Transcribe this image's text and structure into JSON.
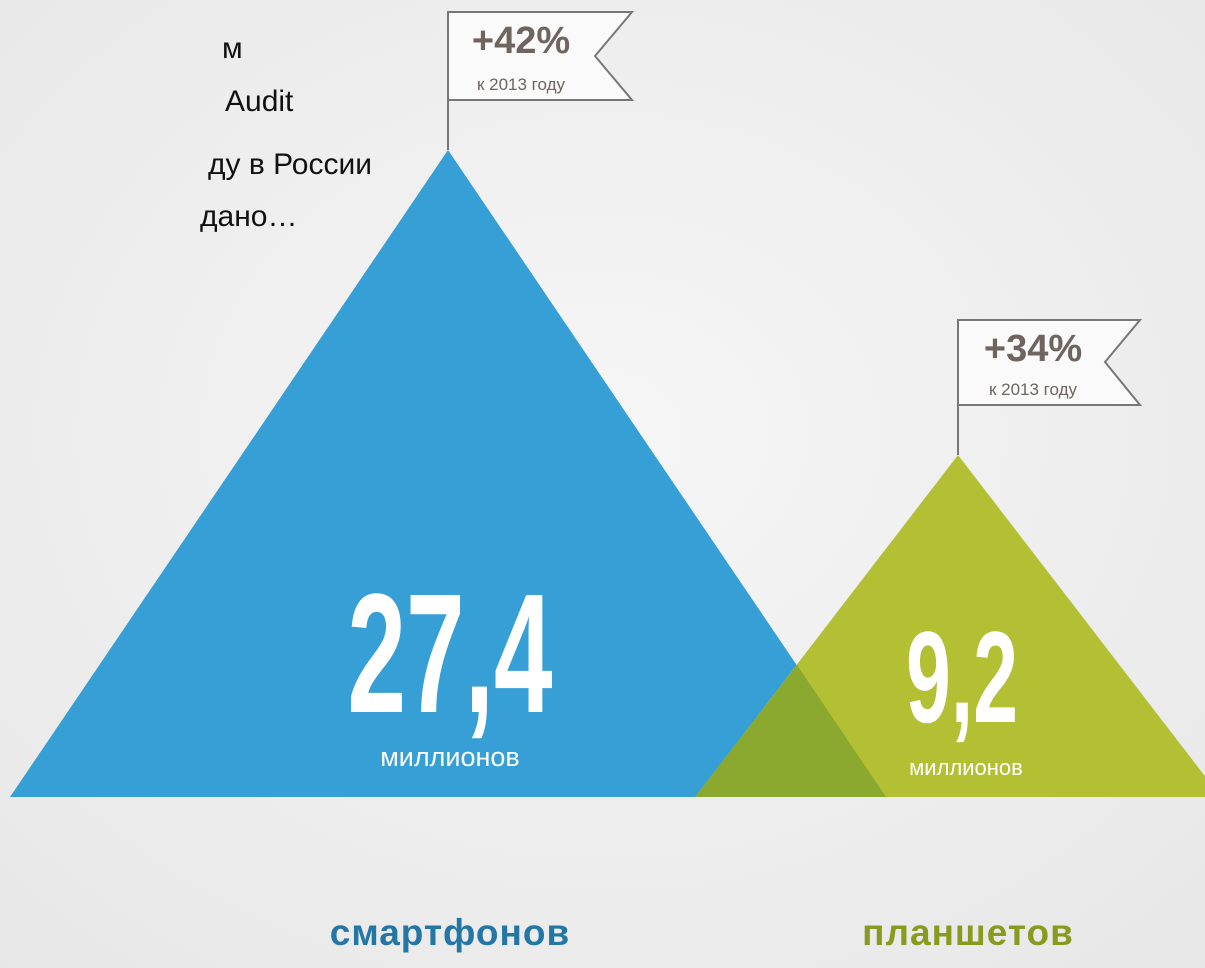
{
  "intro": {
    "lines": [
      "м",
      "Audit",
      "ду в России",
      "дано…"
    ]
  },
  "items": [
    {
      "value": "27,4",
      "unit": "миллионов",
      "label": "смартфонов",
      "growth": "+42%",
      "growth_note": "к 2013 году"
    },
    {
      "value": "9,2",
      "unit": "миллионов",
      "label": "планшетов",
      "growth": "+34%",
      "growth_note": "к 2013 году"
    }
  ]
}
